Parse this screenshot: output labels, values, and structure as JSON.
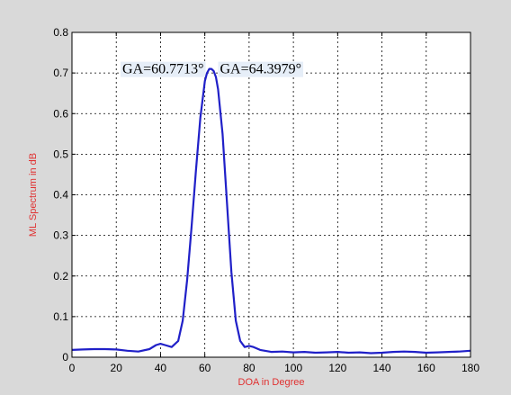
{
  "colors": {
    "figure_bg": "#d9d9d9",
    "axes_bg": "#ffffff",
    "line": "#2020c8",
    "axis_label": "#e03030",
    "grid": "#000000",
    "annotation_bg": "#e6eef8"
  },
  "chart_data": {
    "type": "line",
    "xlabel": "DOA in Degree",
    "ylabel": "ML Spectrum in dB",
    "xlim": [
      0,
      180
    ],
    "ylim": [
      0,
      0.8
    ],
    "xticks": [
      0,
      20,
      40,
      60,
      80,
      100,
      120,
      140,
      160,
      180
    ],
    "yticks": [
      0,
      0.1,
      0.2,
      0.3,
      0.4,
      0.5,
      0.6,
      0.7,
      0.8
    ],
    "xtick_labels": [
      "0",
      "20",
      "40",
      "60",
      "80",
      "100",
      "120",
      "140",
      "160",
      "180"
    ],
    "ytick_labels": [
      "0",
      "0.1",
      "0.2",
      "0.3",
      "0.4",
      "0.5",
      "0.6",
      "0.7",
      "0.8"
    ],
    "grid": true,
    "annotations": [
      {
        "text": "GA=60.7713°",
        "x": 60.77,
        "y": 0.71
      },
      {
        "text": "GA=64.3979°",
        "x": 64.4,
        "y": 0.71
      }
    ],
    "series": [
      {
        "x": [
          0,
          5,
          10,
          15,
          20,
          25,
          30,
          35,
          38,
          40,
          42,
          45,
          48,
          50,
          52,
          54,
          56,
          58,
          60,
          61,
          62,
          63,
          64,
          65,
          66,
          68,
          70,
          72,
          74,
          76,
          78,
          80,
          82,
          85,
          90,
          95,
          100,
          105,
          110,
          115,
          120,
          125,
          130,
          135,
          140,
          145,
          150,
          155,
          160,
          165,
          170,
          175,
          180
        ],
        "y": [
          0.018,
          0.019,
          0.02,
          0.02,
          0.019,
          0.016,
          0.014,
          0.02,
          0.03,
          0.033,
          0.03,
          0.025,
          0.04,
          0.09,
          0.19,
          0.32,
          0.46,
          0.59,
          0.68,
          0.7,
          0.71,
          0.71,
          0.705,
          0.69,
          0.66,
          0.55,
          0.38,
          0.21,
          0.09,
          0.04,
          0.025,
          0.028,
          0.025,
          0.018,
          0.013,
          0.014,
          0.012,
          0.013,
          0.011,
          0.012,
          0.013,
          0.011,
          0.012,
          0.01,
          0.011,
          0.013,
          0.014,
          0.013,
          0.011,
          0.012,
          0.013,
          0.014,
          0.016
        ]
      }
    ]
  }
}
